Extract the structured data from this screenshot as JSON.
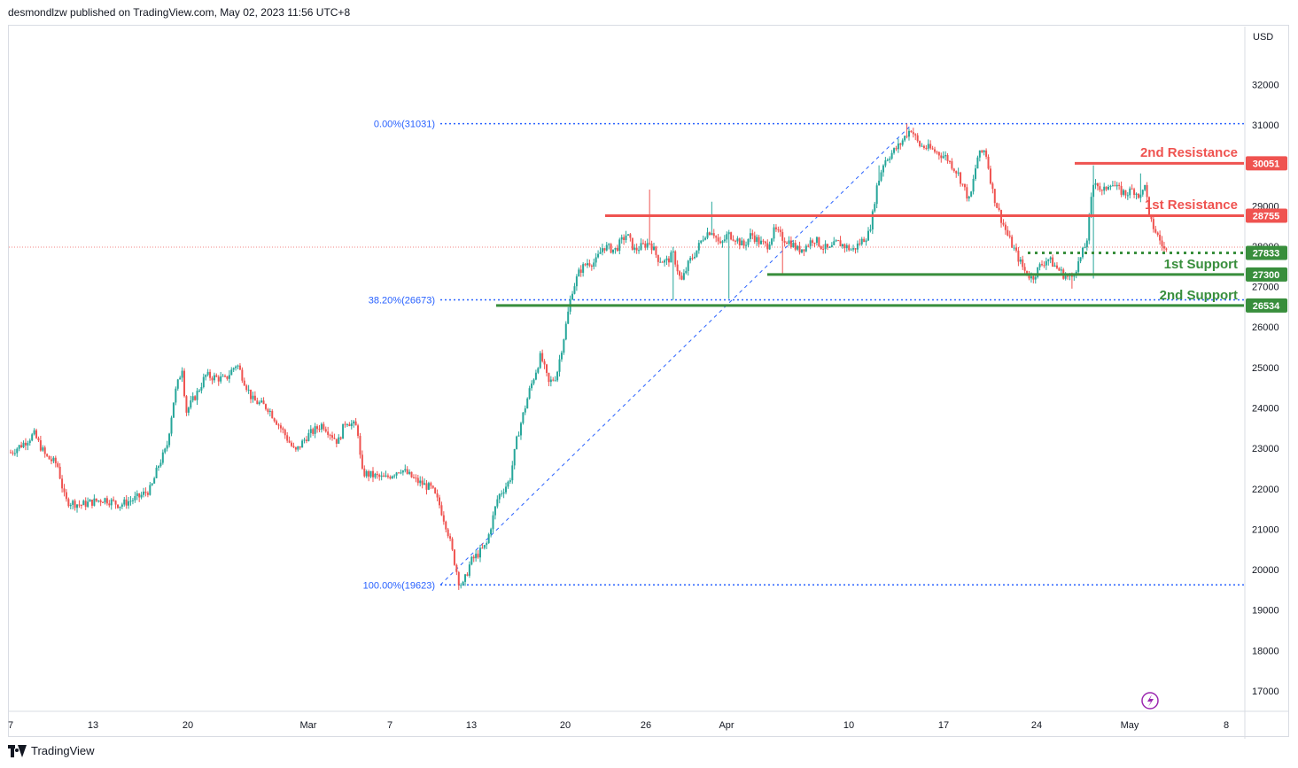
{
  "header": {
    "text": "desmondlzw published on TradingView.com, May 02, 2023 11:56 UTC+8"
  },
  "footer": {
    "brand": "TradingView"
  },
  "icons": {
    "brand_logo": "tradingview-logo-icon",
    "flash": "lightning-icon"
  },
  "chart_data": {
    "type": "candlestick",
    "currency": "USD",
    "ylim": [
      16500,
      33200
    ],
    "y_ticks": [
      17000,
      18000,
      19000,
      20000,
      21000,
      22000,
      23000,
      24000,
      25000,
      26000,
      27000,
      28000,
      29000,
      30000,
      31000,
      32000
    ],
    "x_labels": [
      "7",
      "13",
      "20",
      "Mar",
      "7",
      "13",
      "20",
      "26",
      "Apr",
      "10",
      "17",
      "24",
      "May",
      "8"
    ],
    "colors": {
      "up": "#26a69a",
      "down": "#ef5350",
      "resistance": "#ef5350",
      "support": "#388e3c",
      "fib": "#2962ff"
    },
    "fib_levels": [
      {
        "label": "0.00%(31031)",
        "value": 31031
      },
      {
        "label": "38.20%(26673)",
        "value": 26673
      },
      {
        "label": "100.00%(19623)",
        "value": 19623
      }
    ],
    "levels": [
      {
        "name": "2nd Resistance",
        "value": 30051,
        "badge": "30051",
        "kind": "resistance",
        "style": "solid"
      },
      {
        "name": "1st Resistance",
        "value": 28755,
        "badge": "28755",
        "kind": "resistance",
        "style": "solid"
      },
      {
        "name": "",
        "value": 27833,
        "badge": "27833",
        "kind": "support",
        "style": "dotted"
      },
      {
        "name": "1st Support",
        "value": 27300,
        "badge": "27300",
        "kind": "support",
        "style": "solid"
      },
      {
        "name": "2nd Support",
        "value": 26534,
        "badge": "26534",
        "kind": "support",
        "style": "solid"
      }
    ],
    "current_price": 27833,
    "price_path": [
      [
        0,
        22900
      ],
      [
        3,
        23100
      ],
      [
        6,
        23350
      ],
      [
        9,
        22800
      ],
      [
        12,
        22600
      ],
      [
        14,
        21700
      ],
      [
        18,
        21600
      ],
      [
        24,
        21750
      ],
      [
        28,
        21600
      ],
      [
        33,
        21800
      ],
      [
        36,
        22000
      ],
      [
        38,
        22600
      ],
      [
        40,
        23000
      ],
      [
        42,
        24300
      ],
      [
        44,
        25000
      ],
      [
        45,
        23900
      ],
      [
        48,
        24400
      ],
      [
        50,
        24800
      ],
      [
        55,
        24700
      ],
      [
        58,
        25100
      ],
      [
        62,
        24200
      ],
      [
        66,
        24000
      ],
      [
        70,
        23400
      ],
      [
        73,
        22900
      ],
      [
        76,
        23300
      ],
      [
        80,
        23600
      ],
      [
        84,
        23150
      ],
      [
        86,
        23700
      ],
      [
        89,
        23500
      ],
      [
        90,
        22400
      ],
      [
        96,
        22250
      ],
      [
        100,
        22500
      ],
      [
        104,
        22200
      ],
      [
        108,
        22000
      ],
      [
        110,
        21600
      ],
      [
        112,
        21000
      ],
      [
        115,
        19700
      ],
      [
        116,
        19600
      ],
      [
        118,
        20200
      ],
      [
        122,
        20600
      ],
      [
        125,
        21800
      ],
      [
        128,
        22200
      ],
      [
        130,
        23300
      ],
      [
        133,
        24400
      ],
      [
        136,
        25300
      ],
      [
        138,
        24600
      ],
      [
        140,
        24800
      ],
      [
        142,
        25800
      ],
      [
        144,
        26900
      ],
      [
        146,
        27400
      ],
      [
        148,
        27600
      ],
      [
        150,
        27600
      ],
      [
        152,
        28000
      ],
      [
        155,
        27900
      ],
      [
        158,
        28300
      ],
      [
        160,
        27900
      ],
      [
        162,
        28000
      ],
      [
        164,
        28100
      ],
      [
        166,
        27700
      ],
      [
        168,
        27600
      ],
      [
        170,
        27800
      ],
      [
        172,
        27100
      ],
      [
        174,
        27600
      ],
      [
        176,
        27900
      ],
      [
        178,
        28300
      ],
      [
        180,
        28400
      ],
      [
        182,
        28000
      ],
      [
        184,
        28300
      ],
      [
        186,
        28200
      ],
      [
        188,
        28000
      ],
      [
        190,
        28300
      ],
      [
        192,
        28100
      ],
      [
        194,
        28000
      ],
      [
        196,
        28400
      ],
      [
        198,
        28200
      ],
      [
        200,
        28100
      ],
      [
        202,
        27900
      ],
      [
        204,
        28000
      ],
      [
        206,
        28200
      ],
      [
        208,
        28000
      ],
      [
        210,
        27900
      ],
      [
        212,
        28100
      ],
      [
        214,
        28000
      ],
      [
        216,
        27900
      ],
      [
        218,
        28100
      ],
      [
        220,
        28300
      ],
      [
        221,
        28700
      ],
      [
        222,
        29400
      ],
      [
        224,
        30100
      ],
      [
        226,
        30300
      ],
      [
        228,
        30500
      ],
      [
        230,
        30800
      ],
      [
        231,
        30900
      ],
      [
        233,
        30500
      ],
      [
        236,
        30400
      ],
      [
        240,
        30200
      ],
      [
        243,
        29800
      ],
      [
        246,
        29100
      ],
      [
        248,
        30200
      ],
      [
        250,
        30400
      ],
      [
        252,
        29300
      ],
      [
        254,
        28700
      ],
      [
        256,
        28200
      ],
      [
        258,
        27800
      ],
      [
        260,
        27400
      ],
      [
        262,
        27200
      ],
      [
        264,
        27500
      ],
      [
        266,
        27700
      ],
      [
        268,
        27500
      ],
      [
        270,
        27300
      ],
      [
        272,
        27200
      ],
      [
        274,
        27600
      ],
      [
        276,
        28100
      ],
      [
        277,
        29000
      ],
      [
        278,
        29700
      ],
      [
        280,
        29300
      ],
      [
        282,
        29600
      ],
      [
        284,
        29400
      ],
      [
        286,
        29300
      ],
      [
        288,
        29400
      ],
      [
        290,
        29200
      ],
      [
        291,
        29600
      ],
      [
        292,
        28700
      ],
      [
        294,
        28300
      ],
      [
        296,
        27900
      ],
      [
        297,
        27833
      ]
    ],
    "wick_highs": [
      [
        164,
        29400
      ],
      [
        180,
        29100
      ],
      [
        223,
        30000
      ],
      [
        230,
        31031
      ],
      [
        250,
        30400
      ],
      [
        278,
        30000
      ],
      [
        290,
        29800
      ]
    ],
    "wick_lows": [
      [
        116,
        19623
      ],
      [
        170,
        26673
      ],
      [
        184,
        26700
      ],
      [
        198,
        27300
      ],
      [
        262,
        27100
      ],
      [
        272,
        26950
      ],
      [
        278,
        27200
      ],
      [
        297,
        27700
      ]
    ]
  }
}
